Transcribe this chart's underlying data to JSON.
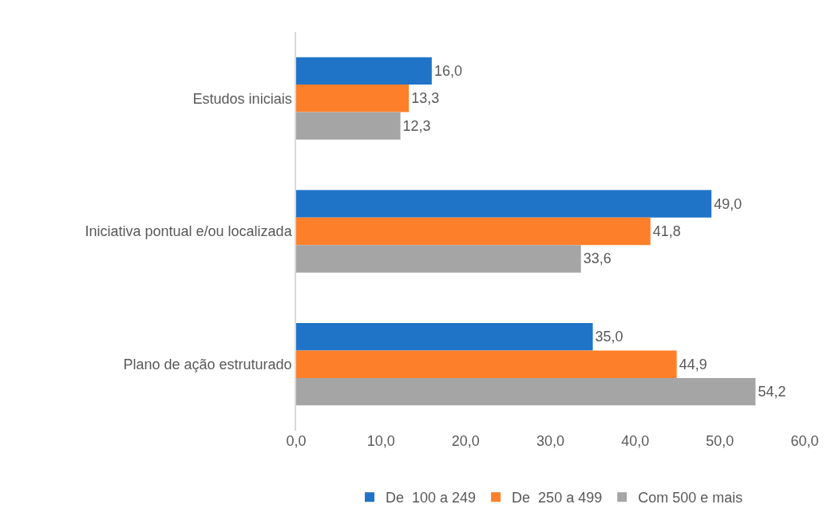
{
  "chart_data": {
    "type": "bar",
    "orientation": "horizontal",
    "categories": [
      "Estudos iniciais",
      "Iniciativa pontual e/ou localizada",
      "Plano de ação estruturado"
    ],
    "series": [
      {
        "name": "De  100 a 249",
        "color": "#1f74c8",
        "values": [
          16.0,
          49.0,
          35.0
        ],
        "value_labels": [
          "16,0",
          "49,0",
          "35,0"
        ]
      },
      {
        "name": "De  250 a 499",
        "color": "#fd7f29",
        "values": [
          13.3,
          41.8,
          44.9
        ],
        "value_labels": [
          "13,3",
          "41,8",
          "44,9"
        ]
      },
      {
        "name": "Com 500 e mais",
        "color": "#a5a5a5",
        "values": [
          12.3,
          33.6,
          54.2
        ],
        "value_labels": [
          "12,3",
          "33,6",
          "54,2"
        ]
      }
    ],
    "xlim": [
      0,
      60
    ],
    "xticks": [
      {
        "value": 0,
        "label": "0,0"
      },
      {
        "value": 10,
        "label": "10,0"
      },
      {
        "value": 20,
        "label": "20,0"
      },
      {
        "value": 30,
        "label": "30,0"
      },
      {
        "value": 40,
        "label": "40,0"
      },
      {
        "value": 50,
        "label": "50,0"
      },
      {
        "value": 60,
        "label": "60,0"
      }
    ],
    "grid": false,
    "legend": "bottom"
  }
}
